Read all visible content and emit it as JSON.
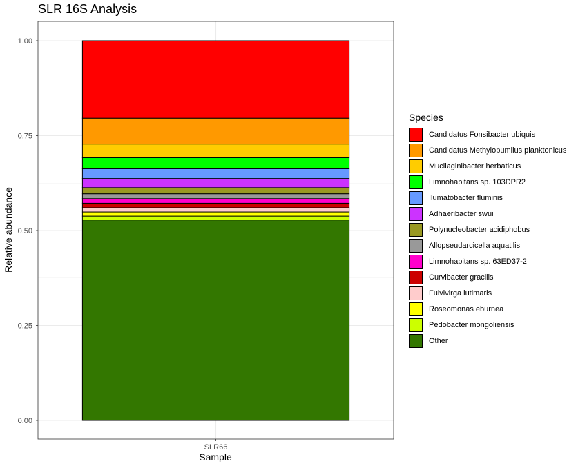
{
  "title": "SLR 16S Analysis",
  "chart_data": {
    "type": "bar",
    "stacked": true,
    "title": "SLR 16S Analysis",
    "xlabel": "Sample",
    "ylabel": "Relative abundance",
    "categories": [
      "SLR66"
    ],
    "ylim": [
      0,
      1
    ],
    "yticks": [
      0.0,
      0.25,
      0.5,
      0.75,
      1.0
    ],
    "ytick_labels": [
      "0.00",
      "0.25",
      "0.50",
      "0.75",
      "1.00"
    ],
    "grid": true,
    "legend_title": "Species",
    "legend_position": "right",
    "series": [
      {
        "name": "Candidatus Fonsibacter ubiquis",
        "color": "#FF0000",
        "values": [
          0.204
        ]
      },
      {
        "name": "Candidatus Methylopumilus planktonicus",
        "color": "#FF9900",
        "values": [
          0.068
        ]
      },
      {
        "name": "Mucilaginibacter herbaticus",
        "color": "#FFCC00",
        "values": [
          0.036
        ]
      },
      {
        "name": "Limnohabitans sp. 103DPR2",
        "color": "#00FF00",
        "values": [
          0.029
        ]
      },
      {
        "name": "Ilumatobacter fluminis",
        "color": "#6699FF",
        "values": [
          0.026
        ]
      },
      {
        "name": "Adhaeribacter swui",
        "color": "#CC33FF",
        "values": [
          0.024
        ]
      },
      {
        "name": "Polynucleobacter acidiphobus",
        "color": "#999922",
        "values": [
          0.016
        ]
      },
      {
        "name": "Allopseudarcicella aquatilis",
        "color": "#999999",
        "values": [
          0.013
        ]
      },
      {
        "name": "Limnohabitans sp. 63ED37-2",
        "color": "#FF00CC",
        "values": [
          0.012
        ]
      },
      {
        "name": "Curvibacter gracilis",
        "color": "#CC0000",
        "values": [
          0.012
        ]
      },
      {
        "name": "Fulvivirga lutimaris",
        "color": "#FFCCCC",
        "values": [
          0.011
        ]
      },
      {
        "name": "Roseomonas eburnea",
        "color": "#FFFF00",
        "values": [
          0.011
        ]
      },
      {
        "name": "Pedobacter mongoliensis",
        "color": "#CCFF00",
        "values": [
          0.01
        ]
      },
      {
        "name": "Other",
        "color": "#337700",
        "values": [
          0.528
        ]
      }
    ]
  }
}
